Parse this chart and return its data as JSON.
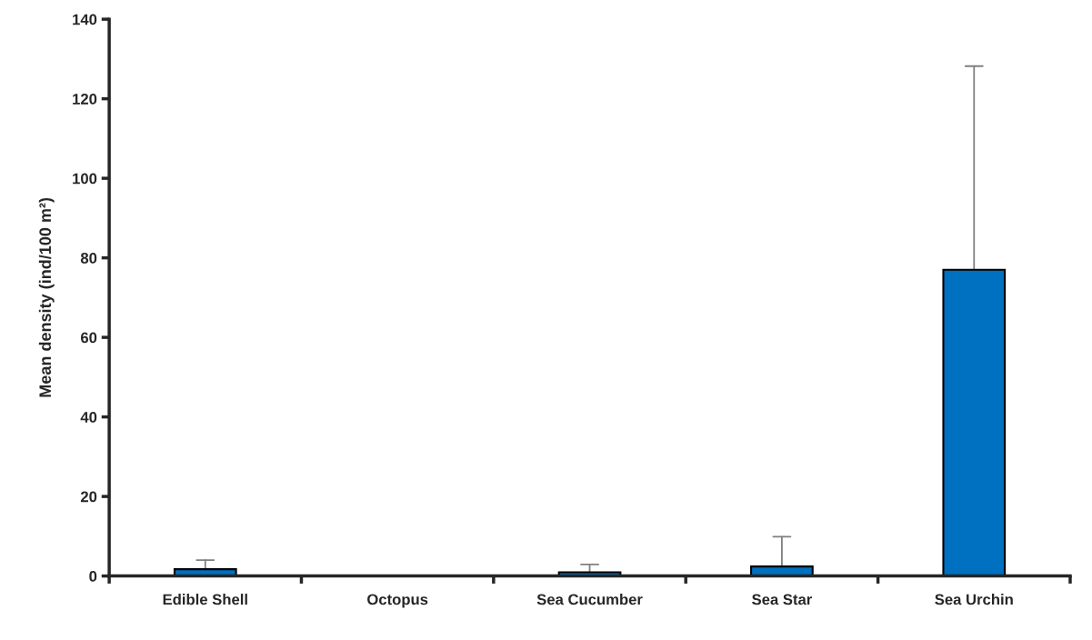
{
  "chart_data": {
    "type": "bar",
    "ylabel": "Mean density (ind/100 m²)",
    "categories": [
      "Edible Shell",
      "Octopus",
      "Sea Cucumber",
      "Sea Star",
      "Sea Urchin"
    ],
    "values": [
      1.7,
      0.1,
      0.95,
      2.4,
      77.0
    ],
    "errors": [
      [
        1.7,
        4.0
      ],
      null,
      [
        0.95,
        2.9
      ],
      [
        2.4,
        9.9
      ],
      [
        77.0,
        128.2
      ]
    ],
    "color": "#0070c0",
    "ylim": [
      0,
      140
    ],
    "yticks": [
      0,
      20,
      40,
      60,
      80,
      100,
      120,
      140
    ],
    "grid": false,
    "legend": false
  }
}
